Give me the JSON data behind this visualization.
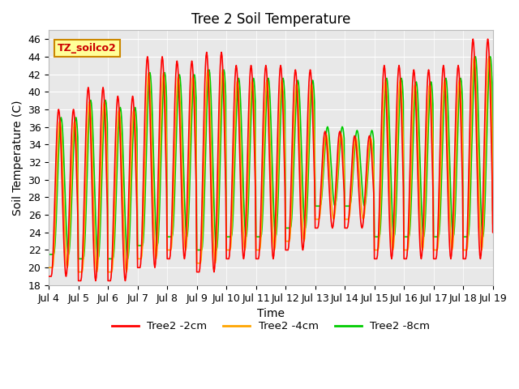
{
  "title": "Tree 2 Soil Temperature",
  "xlabel": "Time",
  "ylabel": "Soil Temperature (C)",
  "ylim": [
    18,
    47
  ],
  "yticks": [
    18,
    20,
    22,
    24,
    26,
    28,
    30,
    32,
    34,
    36,
    38,
    40,
    42,
    44,
    46
  ],
  "x_labels": [
    "Jul 4",
    "Jul 5",
    "Jul 6",
    "Jul 7",
    "Jul 8",
    "Jul 9",
    "Jul 10",
    "Jul 11",
    "Jul 12",
    "Jul 13",
    "Jul 14",
    "Jul 15",
    "Jul 16",
    "Jul 17",
    "Jul 18",
    "Jul 19"
  ],
  "x_ticks": [
    0,
    24,
    48,
    72,
    96,
    120,
    144,
    168,
    192,
    216,
    240,
    264,
    288,
    312,
    336,
    360
  ],
  "colors": {
    "2cm": "#FF0000",
    "4cm": "#FFA500",
    "8cm": "#00CC00"
  },
  "legend_labels": [
    "Tree2 -2cm",
    "Tree2 -4cm",
    "Tree2 -8cm"
  ],
  "annotation": "TZ_soilco2",
  "annotation_bg": "#FFFF99",
  "annotation_border": "#CC8800",
  "plot_bg": "#E8E8E8",
  "grid_color": "#FFFFFF",
  "title_fontsize": 12,
  "label_fontsize": 10,
  "tick_fontsize": 9,
  "day_peaks_2cm": [
    38,
    19,
    40.5,
    19,
    39.5,
    21,
    44,
    20,
    43.5,
    21,
    44.5,
    21,
    43,
    22,
    43,
    21,
    34.5,
    24.5,
    35,
    24.5,
    43,
    21,
    43,
    21,
    43,
    21,
    43,
    21,
    46,
    21
  ],
  "anomaly_start": 216,
  "anomaly_end": 252
}
